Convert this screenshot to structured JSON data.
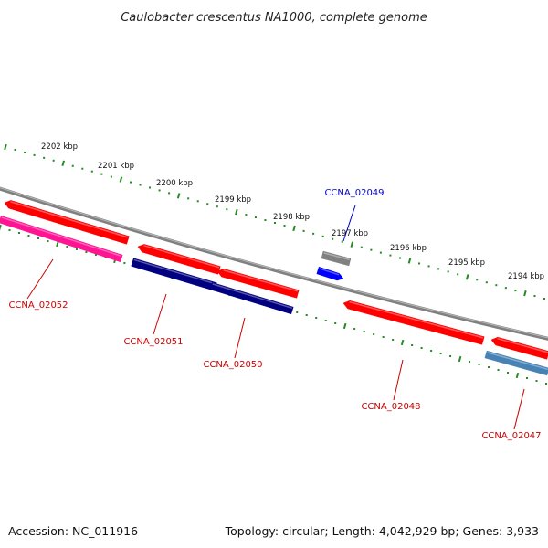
{
  "title": "Caulobacter crescentus NA1000, complete genome",
  "footer": {
    "accession": "Accession: NC_011916",
    "summary": "Topology: circular; Length: 4,042,929 bp; Genes: 3,933"
  },
  "colors": {
    "backbone": "#808080",
    "ruler": "#228b22",
    "forward_gene": "#ff0000",
    "label_red": "#cc0000",
    "label_blue": "#0000cc"
  },
  "ruler": {
    "labels": [
      "2202 kbp",
      "2201 kbp",
      "2200 kbp",
      "2199 kbp",
      "2198 kbp",
      "2197 kbp",
      "2196 kbp",
      "2195 kbp",
      "2194 kbp"
    ]
  },
  "genes": [
    {
      "name": "CCNA_02052",
      "color": "#ff0000",
      "label_color": "#cc0000",
      "show_label": true
    },
    {
      "name": "CCNA_02052b",
      "color": "#ff1493",
      "label_color": "#cc0000",
      "show_label": false
    },
    {
      "name": "CCNA_02051",
      "color": "#ff0000",
      "label_color": "#cc0000",
      "show_label": true
    },
    {
      "name": "CCNA_02051b",
      "color": "#000080",
      "label_color": "#cc0000",
      "show_label": false
    },
    {
      "name": "CCNA_02050",
      "color": "#ff0000",
      "label_color": "#cc0000",
      "show_label": true
    },
    {
      "name": "CCNA_02050b",
      "color": "#000080",
      "label_color": "#cc0000",
      "show_label": false
    },
    {
      "name": "CCNA_02049",
      "color": "#0000ff",
      "label_color": "#0000cc",
      "show_label": true
    },
    {
      "name": "CCNA_02049b",
      "color": "#808080",
      "label_color": "#0000cc",
      "show_label": false
    },
    {
      "name": "CCNA_02048",
      "color": "#ff0000",
      "label_color": "#cc0000",
      "show_label": true
    },
    {
      "name": "CCNA_02047",
      "color": "#ff0000",
      "label_color": "#cc0000",
      "show_label": true
    },
    {
      "name": "CCNA_02047b",
      "color": "#4682b4",
      "label_color": "#cc0000",
      "show_label": false
    }
  ]
}
